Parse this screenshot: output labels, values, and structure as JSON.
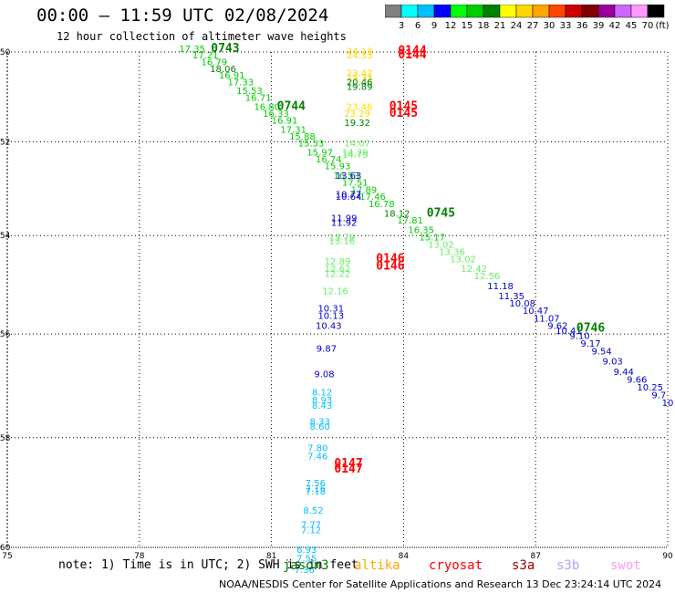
{
  "title": "00:00 – 11:59 UTC 02/08/2024",
  "subtitle": "12 hour collection of altimeter wave heights",
  "colorbar": {
    "labels": [
      "3",
      "6",
      "9",
      "12",
      "15",
      "18",
      "21",
      "24",
      "27",
      "30",
      "33",
      "36",
      "39",
      "42",
      "45",
      "70"
    ],
    "unit": "(ft)",
    "colors": [
      "#808080",
      "#00ffff",
      "#00bfff",
      "#0000ff",
      "#00ff00",
      "#00cc00",
      "#008000",
      "#ffff00",
      "#ffd700",
      "#ffa500",
      "#ff4500",
      "#cc0000",
      "#800000",
      "#990099",
      "#cc66ff",
      "#ff99ff",
      "#000000"
    ]
  },
  "footer": {
    "note": "note:  1) Time is in UTC; 2) SWH is in feet",
    "credit": "NOAA/NESDIS Center for Satellite Applications and Research    13 Dec 23:24:14 UTC 2024"
  },
  "legend": [
    {
      "name": "jason3",
      "color": "#008000"
    },
    {
      "name": "altika",
      "color": "#ffa500"
    },
    {
      "name": "cryosat",
      "color": "#ff0000"
    },
    {
      "name": "s3a",
      "color": "#990000"
    },
    {
      "name": "s3b",
      "color": "#b0a0ff"
    },
    {
      "name": "swot",
      "color": "#ff99ff"
    }
  ],
  "chart_data": {
    "type": "scatter",
    "x_axis": {
      "ticks": [
        "75",
        "78",
        "81",
        "84",
        "87",
        "90"
      ],
      "range": [
        75,
        90
      ]
    },
    "y_axis": {
      "ticks": [
        "-50",
        "-52",
        "-54",
        "-56",
        "-58",
        "-60"
      ],
      "range": [
        -60,
        -50
      ],
      "scale": "mercator"
    },
    "grid": true,
    "time_labels": [
      {
        "text": "0743",
        "lon": 79.95,
        "lat": -50.0,
        "color": "#008000"
      },
      {
        "text": "0744",
        "lon": 81.45,
        "lat": -51.3,
        "color": "#008000"
      },
      {
        "text": "0745",
        "lon": 84.85,
        "lat": -53.6,
        "color": "#008000"
      },
      {
        "text": "0746",
        "lon": 88.25,
        "lat": -55.95,
        "color": "#008000"
      },
      {
        "text": "0144",
        "lon": 84.2,
        "lat": -50.05,
        "color": "#ff0000"
      },
      {
        "text": "0144",
        "lon": 84.2,
        "lat": -50.15,
        "color": "#ff0000"
      },
      {
        "text": "0145",
        "lon": 84.0,
        "lat": -51.3,
        "color": "#ff0000"
      },
      {
        "text": "0145",
        "lon": 84.0,
        "lat": -51.45,
        "color": "#ff0000"
      },
      {
        "text": "0146",
        "lon": 83.7,
        "lat": -54.55,
        "color": "#ff0000"
      },
      {
        "text": "0146",
        "lon": 83.7,
        "lat": -54.7,
        "color": "#ff0000"
      },
      {
        "text": "0147",
        "lon": 82.75,
        "lat": -58.55,
        "color": "#ff0000"
      },
      {
        "text": "0147",
        "lon": 82.75,
        "lat": -58.65,
        "color": "#ff0000"
      }
    ],
    "points": [
      {
        "lon": 79.2,
        "lat": -50.0,
        "swh": "17.35",
        "color": "#00cc00"
      },
      {
        "lon": 79.5,
        "lat": -50.15,
        "swh": "17.21",
        "color": "#00cc00"
      },
      {
        "lon": 79.7,
        "lat": -50.3,
        "swh": "16.79",
        "color": "#00cc00"
      },
      {
        "lon": 79.9,
        "lat": -50.45,
        "swh": "18.06",
        "color": "#008000"
      },
      {
        "lon": 80.1,
        "lat": -50.6,
        "swh": "16.91",
        "color": "#00cc00"
      },
      {
        "lon": 80.3,
        "lat": -50.75,
        "swh": "17.33",
        "color": "#00cc00"
      },
      {
        "lon": 80.5,
        "lat": -50.95,
        "swh": "15.53",
        "color": "#00cc00"
      },
      {
        "lon": 80.7,
        "lat": -51.1,
        "swh": "16.71",
        "color": "#00cc00"
      },
      {
        "lon": 80.9,
        "lat": -51.3,
        "swh": "16.80",
        "color": "#00cc00"
      },
      {
        "lon": 81.1,
        "lat": -51.45,
        "swh": "16.33",
        "color": "#00cc00"
      },
      {
        "lon": 81.3,
        "lat": -51.6,
        "swh": "16.91",
        "color": "#00cc00"
      },
      {
        "lon": 81.5,
        "lat": -51.8,
        "swh": "17.31",
        "color": "#00cc00"
      },
      {
        "lon": 81.7,
        "lat": -51.95,
        "swh": "15.88",
        "color": "#00cc00"
      },
      {
        "lon": 81.9,
        "lat": -52.1,
        "swh": "15.53",
        "color": "#00cc00"
      },
      {
        "lon": 82.1,
        "lat": -52.3,
        "swh": "15.97",
        "color": "#00cc00"
      },
      {
        "lon": 82.3,
        "lat": -52.45,
        "swh": "16.74",
        "color": "#00cc00"
      },
      {
        "lon": 82.5,
        "lat": -52.6,
        "swh": "15.93",
        "color": "#00cc00"
      },
      {
        "lon": 82.7,
        "lat": -52.8,
        "swh": "16.53",
        "color": "#00cc00"
      },
      {
        "lon": 82.9,
        "lat": -52.95,
        "swh": "17.51",
        "color": "#00cc00"
      },
      {
        "lon": 83.1,
        "lat": -53.1,
        "swh": "17.89",
        "color": "#00cc00"
      },
      {
        "lon": 83.3,
        "lat": -53.25,
        "swh": "17.46",
        "color": "#00cc00"
      },
      {
        "lon": 83.5,
        "lat": -53.4,
        "swh": "16.78",
        "color": "#00cc00"
      },
      {
        "lon": 83.85,
        "lat": -53.6,
        "swh": "18.12",
        "color": "#008000"
      },
      {
        "lon": 84.15,
        "lat": -53.75,
        "swh": "17.81",
        "color": "#00cc00"
      },
      {
        "lon": 84.4,
        "lat": -53.95,
        "swh": "16.35",
        "color": "#00cc00"
      },
      {
        "lon": 84.65,
        "lat": -54.1,
        "swh": "15.17",
        "color": "#00cc00"
      },
      {
        "lon": 84.85,
        "lat": -54.25,
        "swh": "13.02",
        "color": "#66ee66"
      },
      {
        "lon": 85.1,
        "lat": -54.4,
        "swh": "13.36",
        "color": "#66ee66"
      },
      {
        "lon": 85.35,
        "lat": -54.55,
        "swh": "13.02",
        "color": "#66ee66"
      },
      {
        "lon": 85.6,
        "lat": -54.75,
        "swh": "12.42",
        "color": "#66ee66"
      },
      {
        "lon": 85.9,
        "lat": -54.9,
        "swh": "12.56",
        "color": "#66ee66"
      },
      {
        "lon": 86.2,
        "lat": -55.1,
        "swh": "11.18",
        "color": "#0000cc"
      },
      {
        "lon": 86.45,
        "lat": -55.3,
        "swh": "11.35",
        "color": "#0000cc"
      },
      {
        "lon": 86.7,
        "lat": -55.45,
        "swh": "10.08",
        "color": "#0000cc"
      },
      {
        "lon": 87.0,
        "lat": -55.6,
        "swh": "10.47",
        "color": "#0000cc"
      },
      {
        "lon": 87.25,
        "lat": -55.75,
        "swh": "11.07",
        "color": "#0000cc"
      },
      {
        "lon": 87.5,
        "lat": -55.9,
        "swh": "9.62",
        "color": "#0000cc"
      },
      {
        "lon": 87.75,
        "lat": -56.0,
        "swh": "10.41",
        "color": "#0000cc"
      },
      {
        "lon": 88.0,
        "lat": -56.1,
        "swh": "9.10",
        "color": "#0000cc"
      },
      {
        "lon": 88.25,
        "lat": -56.25,
        "swh": "9.17",
        "color": "#0000cc"
      },
      {
        "lon": 88.5,
        "lat": -56.4,
        "swh": "9.54",
        "color": "#0000cc"
      },
      {
        "lon": 88.75,
        "lat": -56.6,
        "swh": "9.03",
        "color": "#0000cc"
      },
      {
        "lon": 89.0,
        "lat": -56.8,
        "swh": "9.44",
        "color": "#0000cc"
      },
      {
        "lon": 89.3,
        "lat": -56.95,
        "swh": "9.66",
        "color": "#0000cc"
      },
      {
        "lon": 89.6,
        "lat": -57.1,
        "swh": "10.25",
        "color": "#0000cc"
      },
      {
        "lon": 89.8,
        "lat": -57.25,
        "swh": "9.7",
        "color": "#0000cc"
      },
      {
        "lon": 90.0,
        "lat": -57.4,
        "swh": "10",
        "color": "#0000cc"
      },
      {
        "lon": 83.0,
        "lat": -50.05,
        "swh": "24.13",
        "color": "#ffd700"
      },
      {
        "lon": 83.0,
        "lat": -50.15,
        "swh": "24.33",
        "color": "#ffd700"
      },
      {
        "lon": 83.0,
        "lat": -50.55,
        "swh": "23.42",
        "color": "#ffd700"
      },
      {
        "lon": 83.0,
        "lat": -50.65,
        "swh": "19.33",
        "color": "#ffd700"
      },
      {
        "lon": 83.0,
        "lat": -50.75,
        "swh": "20.46",
        "color": "#008000"
      },
      {
        "lon": 83.0,
        "lat": -50.85,
        "swh": "19.89",
        "color": "#008000"
      },
      {
        "lon": 83.0,
        "lat": -51.3,
        "swh": "23.46",
        "color": "#ffd700"
      },
      {
        "lon": 82.95,
        "lat": -51.45,
        "swh": "23.29",
        "color": "#ffd700"
      },
      {
        "lon": 82.95,
        "lat": -51.65,
        "swh": "19.32",
        "color": "#008000"
      },
      {
        "lon": 82.95,
        "lat": -52.1,
        "swh": "14.07",
        "color": "#66ee66"
      },
      {
        "lon": 82.9,
        "lat": -52.3,
        "swh": "14.79",
        "color": "#66ee66"
      },
      {
        "lon": 82.9,
        "lat": -52.35,
        "swh": "14.79",
        "color": "#66ee66"
      },
      {
        "lon": 82.75,
        "lat": -52.8,
        "swh": "13.63",
        "color": "#0000cc"
      },
      {
        "lon": 82.75,
        "lat": -53.2,
        "swh": "10.77",
        "color": "#0000cc"
      },
      {
        "lon": 82.75,
        "lat": -53.25,
        "swh": "10.64",
        "color": "#0000cc"
      },
      {
        "lon": 82.65,
        "lat": -53.7,
        "swh": "11.99",
        "color": "#0000cc"
      },
      {
        "lon": 82.65,
        "lat": -53.8,
        "swh": "11.92",
        "color": "#0000cc"
      },
      {
        "lon": 82.6,
        "lat": -54.1,
        "swh": "13.79",
        "color": "#66ee66"
      },
      {
        "lon": 82.6,
        "lat": -54.18,
        "swh": "13.16",
        "color": "#66ee66"
      },
      {
        "lon": 82.5,
        "lat": -54.6,
        "swh": "12.89",
        "color": "#66ee66"
      },
      {
        "lon": 82.5,
        "lat": -54.75,
        "swh": "12.62",
        "color": "#66ee66"
      },
      {
        "lon": 82.5,
        "lat": -54.85,
        "swh": "12.22",
        "color": "#66ee66"
      },
      {
        "lon": 82.45,
        "lat": -55.2,
        "swh": "12.16",
        "color": "#66ee66"
      },
      {
        "lon": 82.35,
        "lat": -55.55,
        "swh": "10.31",
        "color": "#0000cc"
      },
      {
        "lon": 82.35,
        "lat": -55.7,
        "swh": "10.13",
        "color": "#0000cc"
      },
      {
        "lon": 82.3,
        "lat": -55.9,
        "swh": "10.43",
        "color": "#0000cc"
      },
      {
        "lon": 82.25,
        "lat": -56.35,
        "swh": "9.87",
        "color": "#0000cc"
      },
      {
        "lon": 82.2,
        "lat": -56.85,
        "swh": "9.08",
        "color": "#0000cc"
      },
      {
        "lon": 82.15,
        "lat": -57.2,
        "swh": "8.12",
        "color": "#00bfff"
      },
      {
        "lon": 82.15,
        "lat": -57.35,
        "swh": "8.93",
        "color": "#00bfff"
      },
      {
        "lon": 82.15,
        "lat": -57.45,
        "swh": "8.43",
        "color": "#00bfff"
      },
      {
        "lon": 82.1,
        "lat": -57.75,
        "swh": "8.33",
        "color": "#00bfff"
      },
      {
        "lon": 82.1,
        "lat": -57.85,
        "swh": "8.60",
        "color": "#00bfff"
      },
      {
        "lon": 82.05,
        "lat": -58.25,
        "swh": "7.80",
        "color": "#00bfff"
      },
      {
        "lon": 82.05,
        "lat": -58.4,
        "swh": "7.46",
        "color": "#00bfff"
      },
      {
        "lon": 82.0,
        "lat": -58.9,
        "swh": "7.56",
        "color": "#00bfff"
      },
      {
        "lon": 82.0,
        "lat": -59.0,
        "swh": "7.16",
        "color": "#00bfff"
      },
      {
        "lon": 82.0,
        "lat": -59.05,
        "swh": "7.18",
        "color": "#00bfff"
      },
      {
        "lon": 81.95,
        "lat": -59.4,
        "swh": "8.52",
        "color": "#00bfff"
      },
      {
        "lon": 81.9,
        "lat": -59.65,
        "swh": "7.77",
        "color": "#00bfff"
      },
      {
        "lon": 81.9,
        "lat": -59.75,
        "swh": "7.12",
        "color": "#00bfff"
      },
      {
        "lon": 81.8,
        "lat": -60.1,
        "swh": "6.93",
        "color": "#00bfff"
      },
      {
        "lon": 81.8,
        "lat": -60.25,
        "swh": "7.55",
        "color": "#00bfff"
      },
      {
        "lon": 81.75,
        "lat": -60.45,
        "swh": "7.36",
        "color": "#00bfff"
      }
    ]
  }
}
